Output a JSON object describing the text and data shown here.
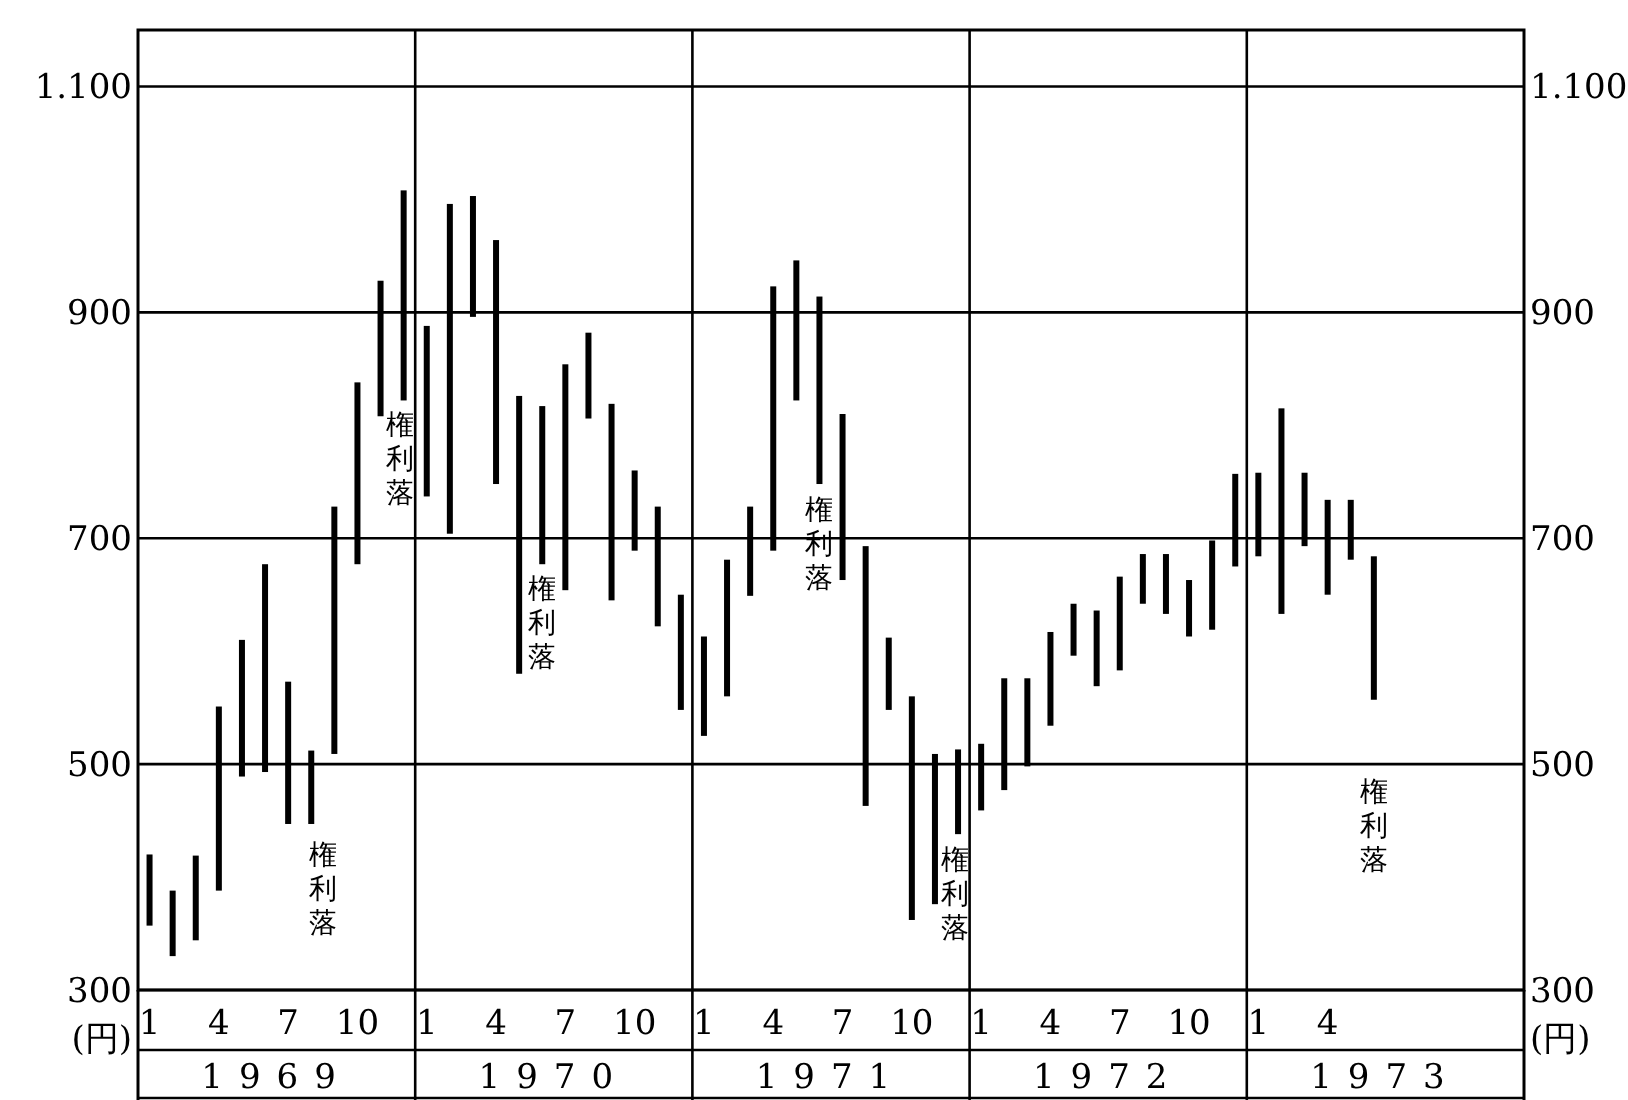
{
  "chart_data": {
    "type": "bar",
    "categories": [
      "1",
      null,
      null,
      "4",
      null,
      null,
      "7",
      null,
      null,
      "10",
      null,
      null,
      "1",
      null,
      null,
      "4",
      null,
      null,
      "7",
      null,
      null,
      "10",
      null,
      null,
      "1",
      null,
      null,
      "4",
      null,
      null,
      "7",
      null,
      null,
      "10",
      null,
      null,
      "1",
      null,
      null,
      "4",
      null,
      null,
      "7",
      null,
      null,
      "10",
      null,
      null,
      "1",
      null,
      null,
      "4",
      null,
      null,
      null,
      null,
      null,
      null,
      null,
      null
    ],
    "base": [
      357,
      330,
      344,
      388,
      489,
      493,
      447,
      447,
      509,
      677,
      808,
      822,
      737,
      704,
      896,
      748,
      580,
      677,
      654,
      806,
      645,
      689,
      622,
      548,
      525,
      560,
      649,
      689,
      822,
      748,
      663,
      463,
      548,
      362,
      376,
      438,
      459,
      477,
      498,
      534,
      596,
      569,
      583,
      642,
      633,
      613,
      619,
      675,
      684,
      633,
      693,
      650,
      681,
      557,
      null,
      null,
      null,
      null,
      null,
      null
    ],
    "values": [
      63,
      58,
      75,
      163,
      121,
      184,
      126,
      65,
      219,
      161,
      120,
      186,
      151,
      292,
      107,
      216,
      246,
      140,
      200,
      76,
      174,
      71,
      106,
      102,
      88,
      121,
      79,
      234,
      124,
      166,
      147,
      230,
      64,
      198,
      133,
      75,
      59,
      99,
      78,
      83,
      46,
      67,
      83,
      44,
      53,
      50,
      79,
      82,
      74,
      182,
      65,
      84,
      53,
      127,
      null,
      null,
      null,
      null,
      null,
      null
    ],
    "color": "#000000",
    "ylim": [
      300,
      1150
    ],
    "yticks": [
      300,
      500,
      700,
      900,
      {
        "value": 1100,
        "label": "1.100"
      }
    ],
    "y2lim": [
      300,
      1150
    ],
    "y2ticks": [
      300,
      500,
      700,
      900,
      {
        "value": 1100,
        "label": "1.100"
      }
    ],
    "ylabel": "(円)",
    "y2label": "(円)",
    "grid": "y",
    "annotations": [
      "1969",
      "1970",
      "1971",
      "1972",
      "1973",
      "権利落",
      "権利落",
      "権利落",
      "権利落",
      "権利落",
      "権利落"
    ]
  }
}
